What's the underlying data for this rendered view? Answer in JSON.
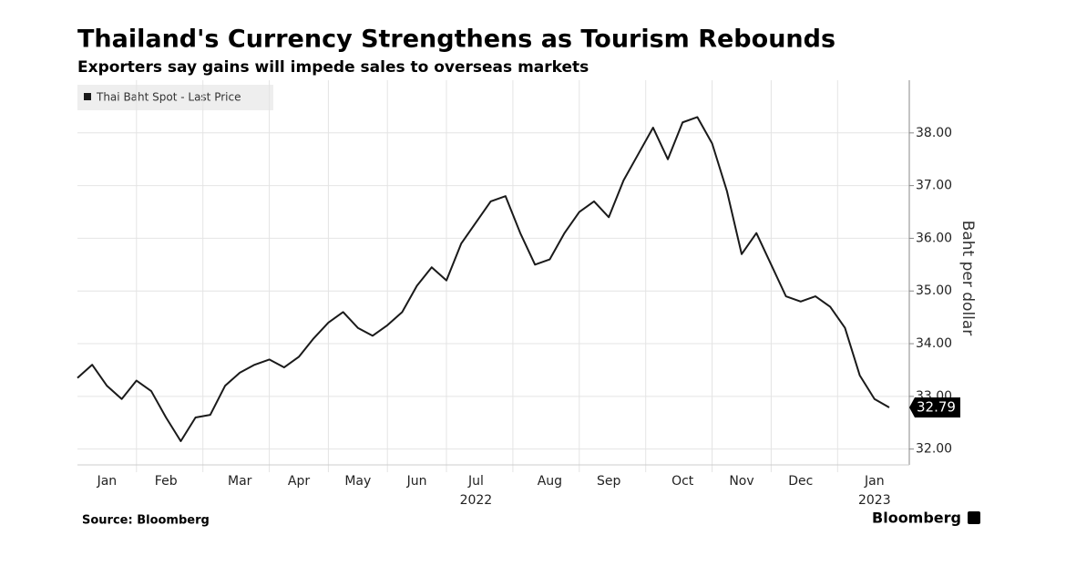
{
  "chart_data": {
    "type": "line",
    "title": "Thailand's Currency Strengthens as Tourism Rebounds",
    "subtitle": "Exporters say gains will impede sales to overseas markets",
    "y_label": "Baht per dollar",
    "source": "Source: Bloomberg",
    "brand": "Bloomberg",
    "categories": [
      null,
      null,
      "Jan",
      null,
      null,
      null,
      "Feb",
      null,
      null,
      null,
      null,
      "Mar",
      null,
      null,
      null,
      "Apr",
      null,
      null,
      null,
      "May",
      null,
      null,
      null,
      "Jun",
      null,
      null,
      null,
      "Jul",
      null,
      null,
      null,
      null,
      "Aug",
      null,
      null,
      null,
      "Sep",
      null,
      null,
      null,
      null,
      "Oct",
      null,
      null,
      null,
      "Nov",
      null,
      null,
      null,
      "Dec",
      null,
      null,
      null,
      null,
      "Jan",
      null
    ],
    "year_labels": [
      {
        "label": "2022",
        "category": 27
      },
      {
        "label": "2023",
        "category": 54
      }
    ],
    "series": [
      {
        "name": "Thai Baht Spot - Last Price",
        "color": "#1a1a1a",
        "values": [
          33.35,
          33.6,
          33.2,
          32.95,
          33.3,
          33.1,
          32.6,
          32.15,
          32.6,
          32.65,
          33.2,
          33.45,
          33.6,
          33.7,
          33.55,
          33.75,
          34.1,
          34.4,
          34.6,
          34.3,
          34.15,
          34.35,
          34.6,
          35.1,
          35.45,
          35.2,
          35.9,
          36.3,
          36.7,
          36.8,
          36.1,
          35.5,
          35.6,
          36.1,
          36.5,
          36.7,
          36.4,
          37.1,
          37.6,
          38.1,
          37.5,
          38.2,
          38.3,
          37.8,
          36.9,
          35.7,
          36.1,
          35.5,
          34.9,
          34.8,
          34.9,
          34.7,
          34.3,
          33.4,
          32.95,
          32.79
        ]
      }
    ],
    "ylim": [
      31.7,
      39.0
    ],
    "yticks": [
      {
        "value": 32,
        "label": "32.00"
      },
      {
        "value": 33,
        "label": "33.00"
      },
      {
        "value": 34,
        "label": "34.00"
      },
      {
        "value": 35,
        "label": "35.00"
      },
      {
        "value": 36,
        "label": "36.00"
      },
      {
        "value": 37,
        "label": "37.00"
      },
      {
        "value": 38,
        "label": "38.00"
      }
    ],
    "grid": true,
    "legend": "top-left"
  }
}
